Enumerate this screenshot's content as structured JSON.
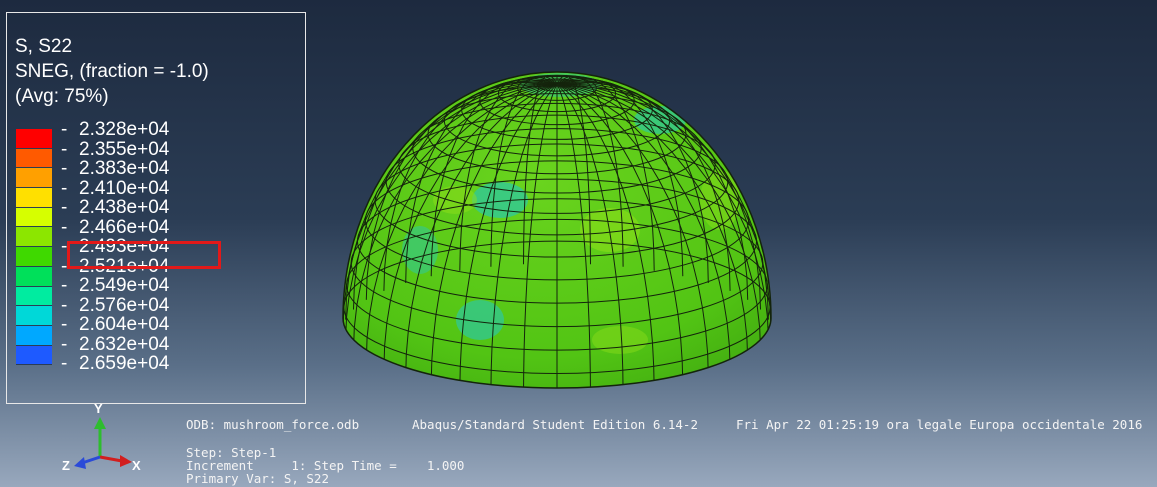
{
  "legend": {
    "title_line1": "S, S22",
    "title_line2": "SNEG, (fraction = -1.0)",
    "title_line3": "(Avg: 75%)",
    "tick_labels": [
      "-2.328e+04",
      "-2.355e+04",
      "-2.383e+04",
      "-2.410e+04",
      "-2.438e+04",
      "-2.466e+04",
      "-2.493e+04",
      "-2.521e+04",
      "-2.549e+04",
      "-2.576e+04",
      "-2.604e+04",
      "-2.632e+04",
      "-2.659e+04"
    ],
    "colors": [
      "#ff0000",
      "#ff5a00",
      "#ffa000",
      "#ffe000",
      "#d6ff00",
      "#8ce600",
      "#3fd900",
      "#00e05a",
      "#00eca0",
      "#00d8d8",
      "#00a8ff",
      "#1e5aff",
      "#0000ff"
    ],
    "highlighted_value": "-2.493e+04",
    "highlight_color": "#e21919"
  },
  "info": {
    "odb": "ODB: mushroom_force.odb",
    "edition": "Abaqus/Standard Student Edition 6.14-2",
    "date": "Fri Apr 22 01:25:19 ora legale Europa occidentale 2016",
    "step": "Step: Step-1",
    "increment": "Increment     1: Step Time =    1.000",
    "primary_var": "Primary Var: S, S22"
  },
  "triad": {
    "y_label": "Y",
    "z_label": "Z",
    "x_label": "X"
  },
  "model": {
    "description_colors": {
      "main": "#58cc18",
      "light": "#8ede1a",
      "cyan": "#2ec8a0",
      "mesh": "#1a2a10"
    }
  }
}
